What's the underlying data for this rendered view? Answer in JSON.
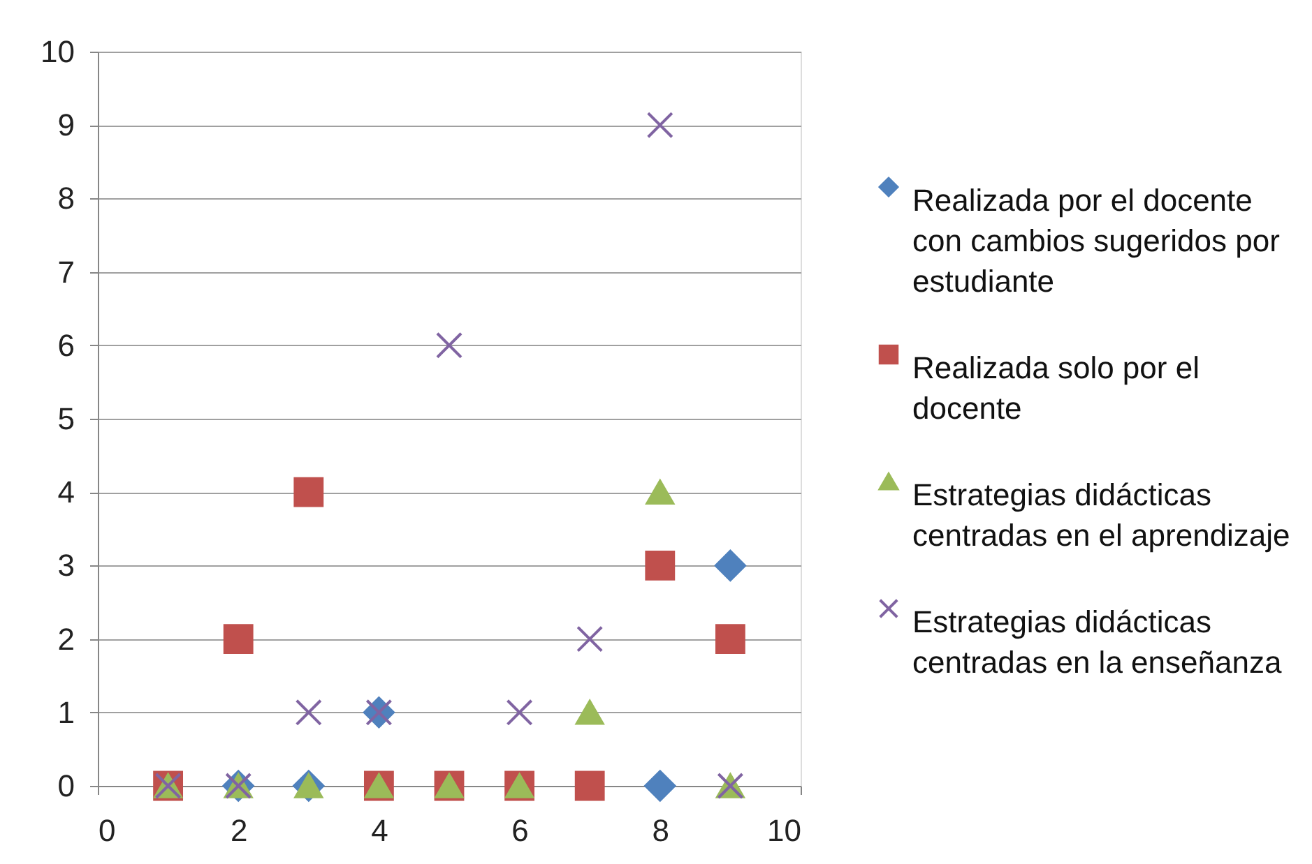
{
  "chart_data": {
    "type": "scatter",
    "x": [
      1,
      2,
      3,
      4,
      5,
      6,
      7,
      8,
      9
    ],
    "xlim": [
      0,
      10
    ],
    "xticks": [
      0,
      2,
      4,
      6,
      8,
      10
    ],
    "ylim": [
      0,
      10
    ],
    "yticks": [
      0,
      1,
      2,
      3,
      4,
      5,
      6,
      7,
      8,
      9,
      10
    ],
    "grid": "y",
    "legend": "right",
    "series": [
      {
        "name": "Realizada por el docente con cambios sugeridos por estudiante",
        "color": "#4f81bd",
        "marker": "diamond",
        "values": [
          null,
          0,
          0,
          1,
          null,
          null,
          null,
          0,
          3
        ]
      },
      {
        "name": "Realizada solo por el docente",
        "color": "#c0504d",
        "marker": "square",
        "values": [
          0,
          2,
          4,
          0,
          0,
          0,
          0,
          3,
          2
        ]
      },
      {
        "name": "Estrategias didácticas centradas en el aprendizaje",
        "color": "#9bbb59",
        "marker": "triangle",
        "values": [
          0,
          0,
          0,
          0,
          0,
          0,
          1,
          4,
          0
        ]
      },
      {
        "name": "Estrategias didácticas centradas en la enseñanza",
        "color": "#8064a2",
        "marker": "cross",
        "values": [
          0,
          0,
          1,
          1,
          6,
          1,
          2,
          9,
          0
        ]
      }
    ]
  }
}
